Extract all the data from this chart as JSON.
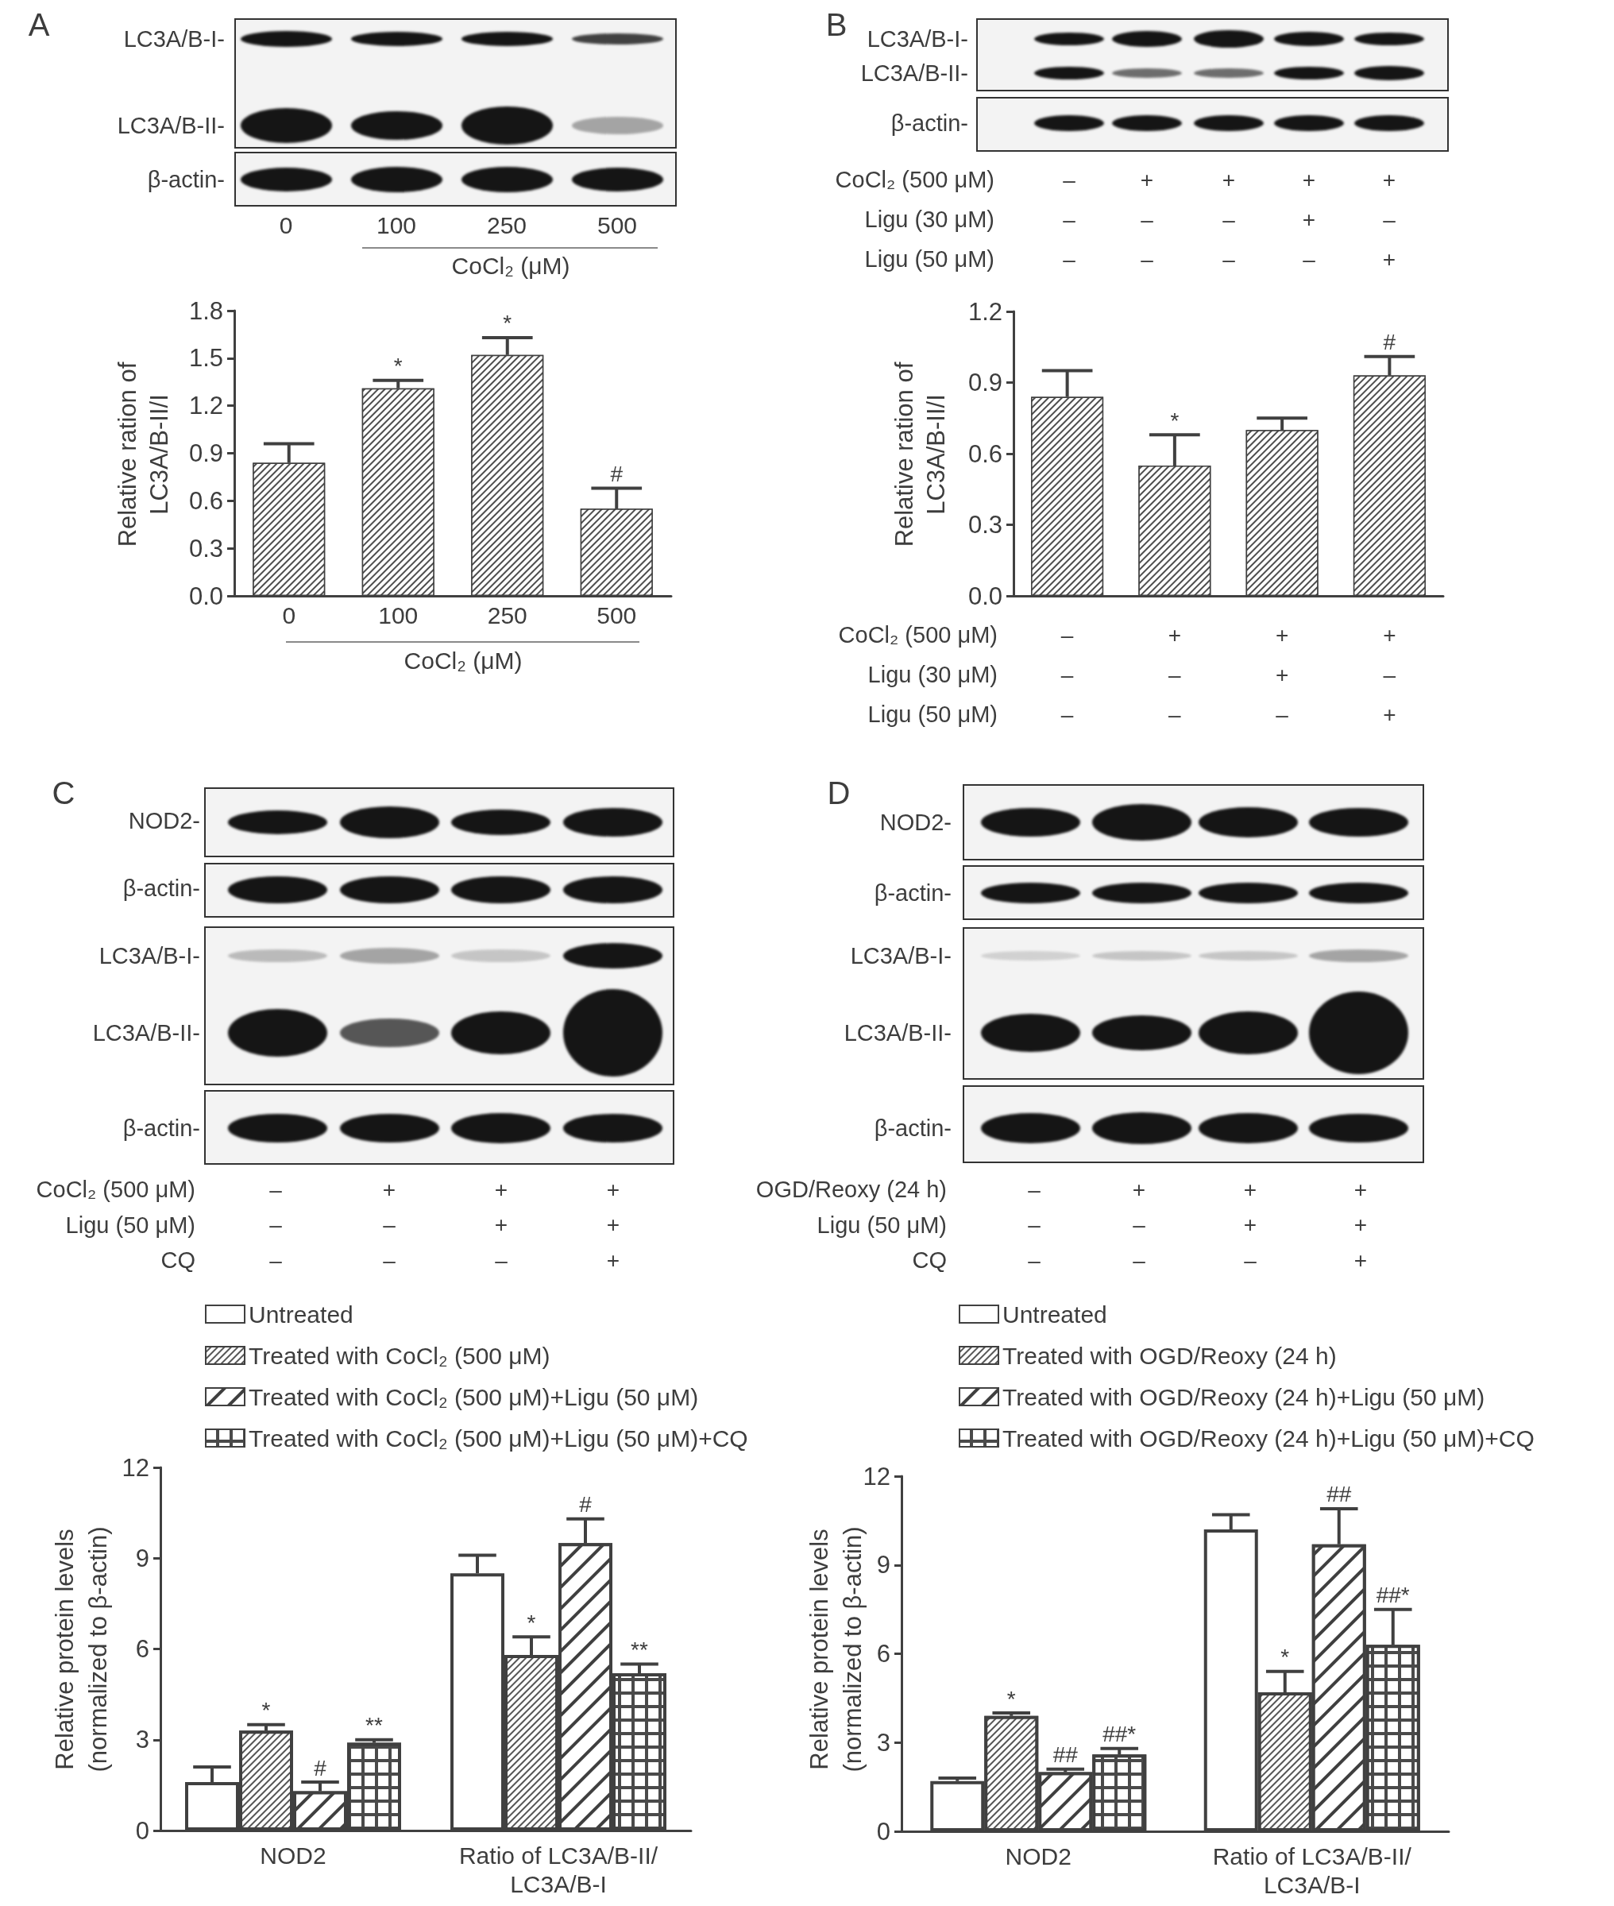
{
  "chart_data": [
    {
      "type": "bar",
      "title": "A",
      "ylabel": "Relative ration of\nLC3A/B-II/I",
      "xlabel": "CoCl₂ (μM)",
      "categories": [
        "0",
        "100",
        "250",
        "500"
      ],
      "values": [
        0.84,
        1.31,
        1.52,
        0.55
      ],
      "errors": [
        [
          0.84,
          0.96
        ],
        [
          1.31,
          1.36
        ],
        [
          1.52,
          1.63
        ],
        [
          0.55,
          0.68
        ]
      ],
      "value_labels": [
        null,
        "*",
        "*",
        "#"
      ],
      "color": "#4d4d4d",
      "ylim": [
        0,
        1.8
      ],
      "yticks": [
        {
          "value": 0,
          "label": "0.0"
        },
        0.3,
        0.6,
        0.9,
        1.2,
        1.5,
        1.8
      ],
      "annotations": [
        "LC3A/B-I-",
        "LC3A/B-II-",
        "β-actin-",
        "0",
        "100",
        "250",
        "500",
        "CoCl₂ (μM)"
      ]
    },
    {
      "type": "bar",
      "title": "B",
      "ylabel": "Relative ration of\nLC3A/B-II/I",
      "xlabel": "CoCl₂ (500 μM)\nLigu (30 μM)\nLigu (50 μM)",
      "categories": [
        "–\n–\n–",
        "+\n–\n–",
        "+\n+\n–",
        "+\n–\n+"
      ],
      "values": [
        0.84,
        0.55,
        0.7,
        0.93
      ],
      "errors": [
        [
          0.84,
          0.95
        ],
        [
          0.55,
          0.68
        ],
        [
          0.7,
          0.75
        ],
        [
          0.93,
          1.01
        ]
      ],
      "value_labels": [
        null,
        "*",
        null,
        "#"
      ],
      "color": "#4d4d4d",
      "ylim": [
        0,
        1.2
      ],
      "yticks": [
        {
          "value": 0,
          "label": "0.0"
        },
        0.3,
        0.6,
        0.9,
        1.2
      ],
      "annotations": [
        "LC3A/B-I-",
        "LC3A/B-II-",
        "β-actin-",
        "CoCl₂ (500 μM)\nLigu (30 μM)\nLigu (50 μM)",
        "–\n–\n–",
        "+\n–\n–",
        "+\n–\n–",
        "+\n+\n–",
        "+\n–\n+"
      ]
    },
    {
      "type": "bar",
      "title": "C",
      "ylabel": "Relative protein levels\n(normalized to β-actin)",
      "categories": [
        "NOD2",
        "Ratio of LC3A/B-II/\nLC3A/B-I"
      ],
      "series": [
        {
          "name": "Untreated",
          "color": "#ffffff",
          "values": [
            1.6,
            8.5
          ],
          "errors": [
            [
              1.6,
              2.1
            ],
            [
              8.5,
              9.1
            ]
          ]
        },
        {
          "name": "Treated with CoCl₂ (500 μM)",
          "color": "#555555",
          "values": [
            3.3,
            5.8
          ],
          "errors": [
            [
              3.3,
              3.5
            ],
            [
              5.8,
              6.4
            ]
          ],
          "value_labels": [
            "*",
            "*"
          ]
        },
        {
          "name": "Treated with CoCl₂ (500 μM)+Ligu (50 μM)",
          "color": "#3f3f3f",
          "values": [
            1.3,
            9.5
          ],
          "errors": [
            [
              1.3,
              1.6
            ],
            [
              9.5,
              10.3
            ]
          ],
          "value_labels": [
            "#",
            "#"
          ]
        },
        {
          "name": "Treated with CoCl₂ (500 μM)+Ligu (50 μM)+CQ",
          "color": "#4a4a4a",
          "values": [
            2.9,
            5.2
          ],
          "errors": [
            [
              2.9,
              3.0
            ],
            [
              5.2,
              5.5
            ]
          ],
          "value_labels": [
            "**",
            "**"
          ]
        }
      ],
      "ylim": [
        0,
        12
      ],
      "yticks": [
        0,
        3,
        6,
        9,
        12
      ],
      "legend": "top",
      "annotations": [
        "NOD2-",
        "β-actin-",
        "LC3A/B-I-",
        "LC3A/B-II-",
        "β-actin-",
        "CoCl₂ (500 μM)\nLigu (50 μM)\nCQ",
        "–\n–\n–",
        "+\n–\n–",
        "+\n+\n–",
        "+\n+\n+"
      ]
    },
    {
      "type": "bar",
      "title": "D",
      "ylabel": "Relative protein levels\n(normalized to β-actin)",
      "categories": [
        "NOD2",
        "Ratio of LC3A/B-II/\nLC3A/B-I"
      ],
      "series": [
        {
          "name": "Untreated",
          "color": "#ffffff",
          "values": [
            1.7,
            10.2
          ],
          "errors": [
            [
              1.7,
              1.8
            ],
            [
              10.2,
              10.7
            ]
          ]
        },
        {
          "name": "Treated with OGD/Reoxy (24 h)",
          "color": "#555555",
          "values": [
            3.9,
            4.7
          ],
          "errors": [
            [
              3.9,
              4.0
            ],
            [
              4.7,
              5.4
            ]
          ],
          "value_labels": [
            "*",
            "*"
          ]
        },
        {
          "name": "Treated with OGD/Reoxy (24 h)+Ligu (50 μM)",
          "color": "#3f3f3f",
          "values": [
            2.0,
            9.7
          ],
          "errors": [
            [
              2.0,
              2.1
            ],
            [
              9.7,
              10.9
            ]
          ],
          "value_labels": [
            "##",
            "##"
          ]
        },
        {
          "name": "Treated with OGD/Reoxy (24 h)+Ligu (50 μM)+CQ",
          "color": "#4a4a4a",
          "values": [
            2.6,
            6.3
          ],
          "errors": [
            [
              2.6,
              2.8
            ],
            [
              6.3,
              7.5
            ]
          ],
          "value_labels": [
            "##*",
            "##*"
          ]
        }
      ],
      "ylim": [
        0,
        12
      ],
      "yticks": [
        0,
        3,
        6,
        9,
        12
      ],
      "legend": "top",
      "annotations": [
        "NOD2-",
        "β-actin-",
        "LC3A/B-I-",
        "LC3A/B-II-",
        "β-actin-",
        "OGD/Reoxy (24 h)\nLigu (50 μM)\nCQ",
        "–\n–\n–",
        "+\n–\n–",
        "+\n+\n–",
        "+\n+\n+"
      ]
    }
  ]
}
